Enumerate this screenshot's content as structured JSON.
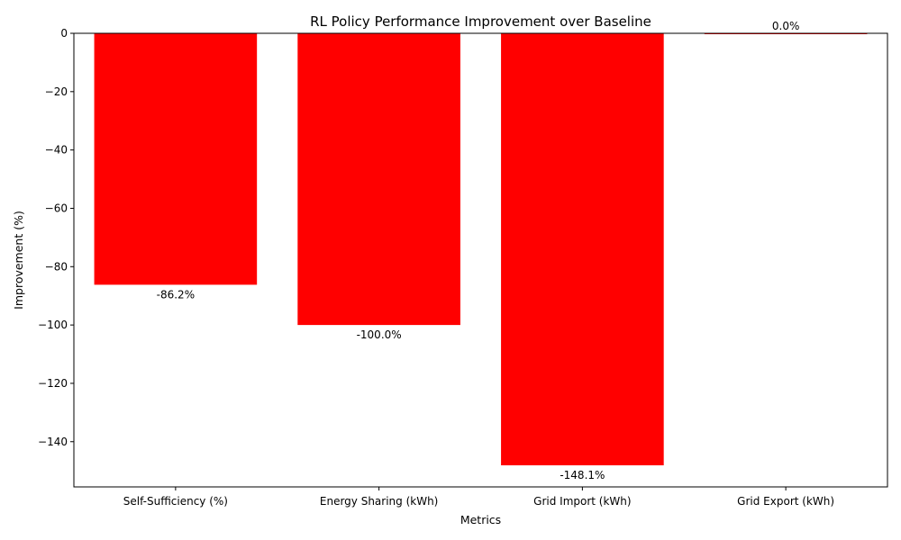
{
  "chart_data": {
    "type": "bar",
    "title": "RL Policy Performance Improvement over Baseline",
    "xlabel": "Metrics",
    "ylabel": "Improvement (%)",
    "categories": [
      "Self-Sufficiency (%)",
      "Energy Sharing (kWh)",
      "Grid Import (kWh)",
      "Grid Export (kWh)"
    ],
    "values": [
      -86.2,
      -100.0,
      -148.1,
      0.0
    ],
    "value_labels": [
      "-86.2%",
      "-100.0%",
      "-148.1%",
      "0.0%"
    ],
    "ylim": [
      -155.5,
      0
    ],
    "yticks": [
      0,
      -20,
      -40,
      -60,
      -80,
      -100,
      -120,
      -140
    ],
    "ytick_labels": [
      "0",
      "−20",
      "−40",
      "−60",
      "−80",
      "−100",
      "−120",
      "−140"
    ],
    "bar_color": "#ff0000",
    "grid": false,
    "legend": "none"
  }
}
